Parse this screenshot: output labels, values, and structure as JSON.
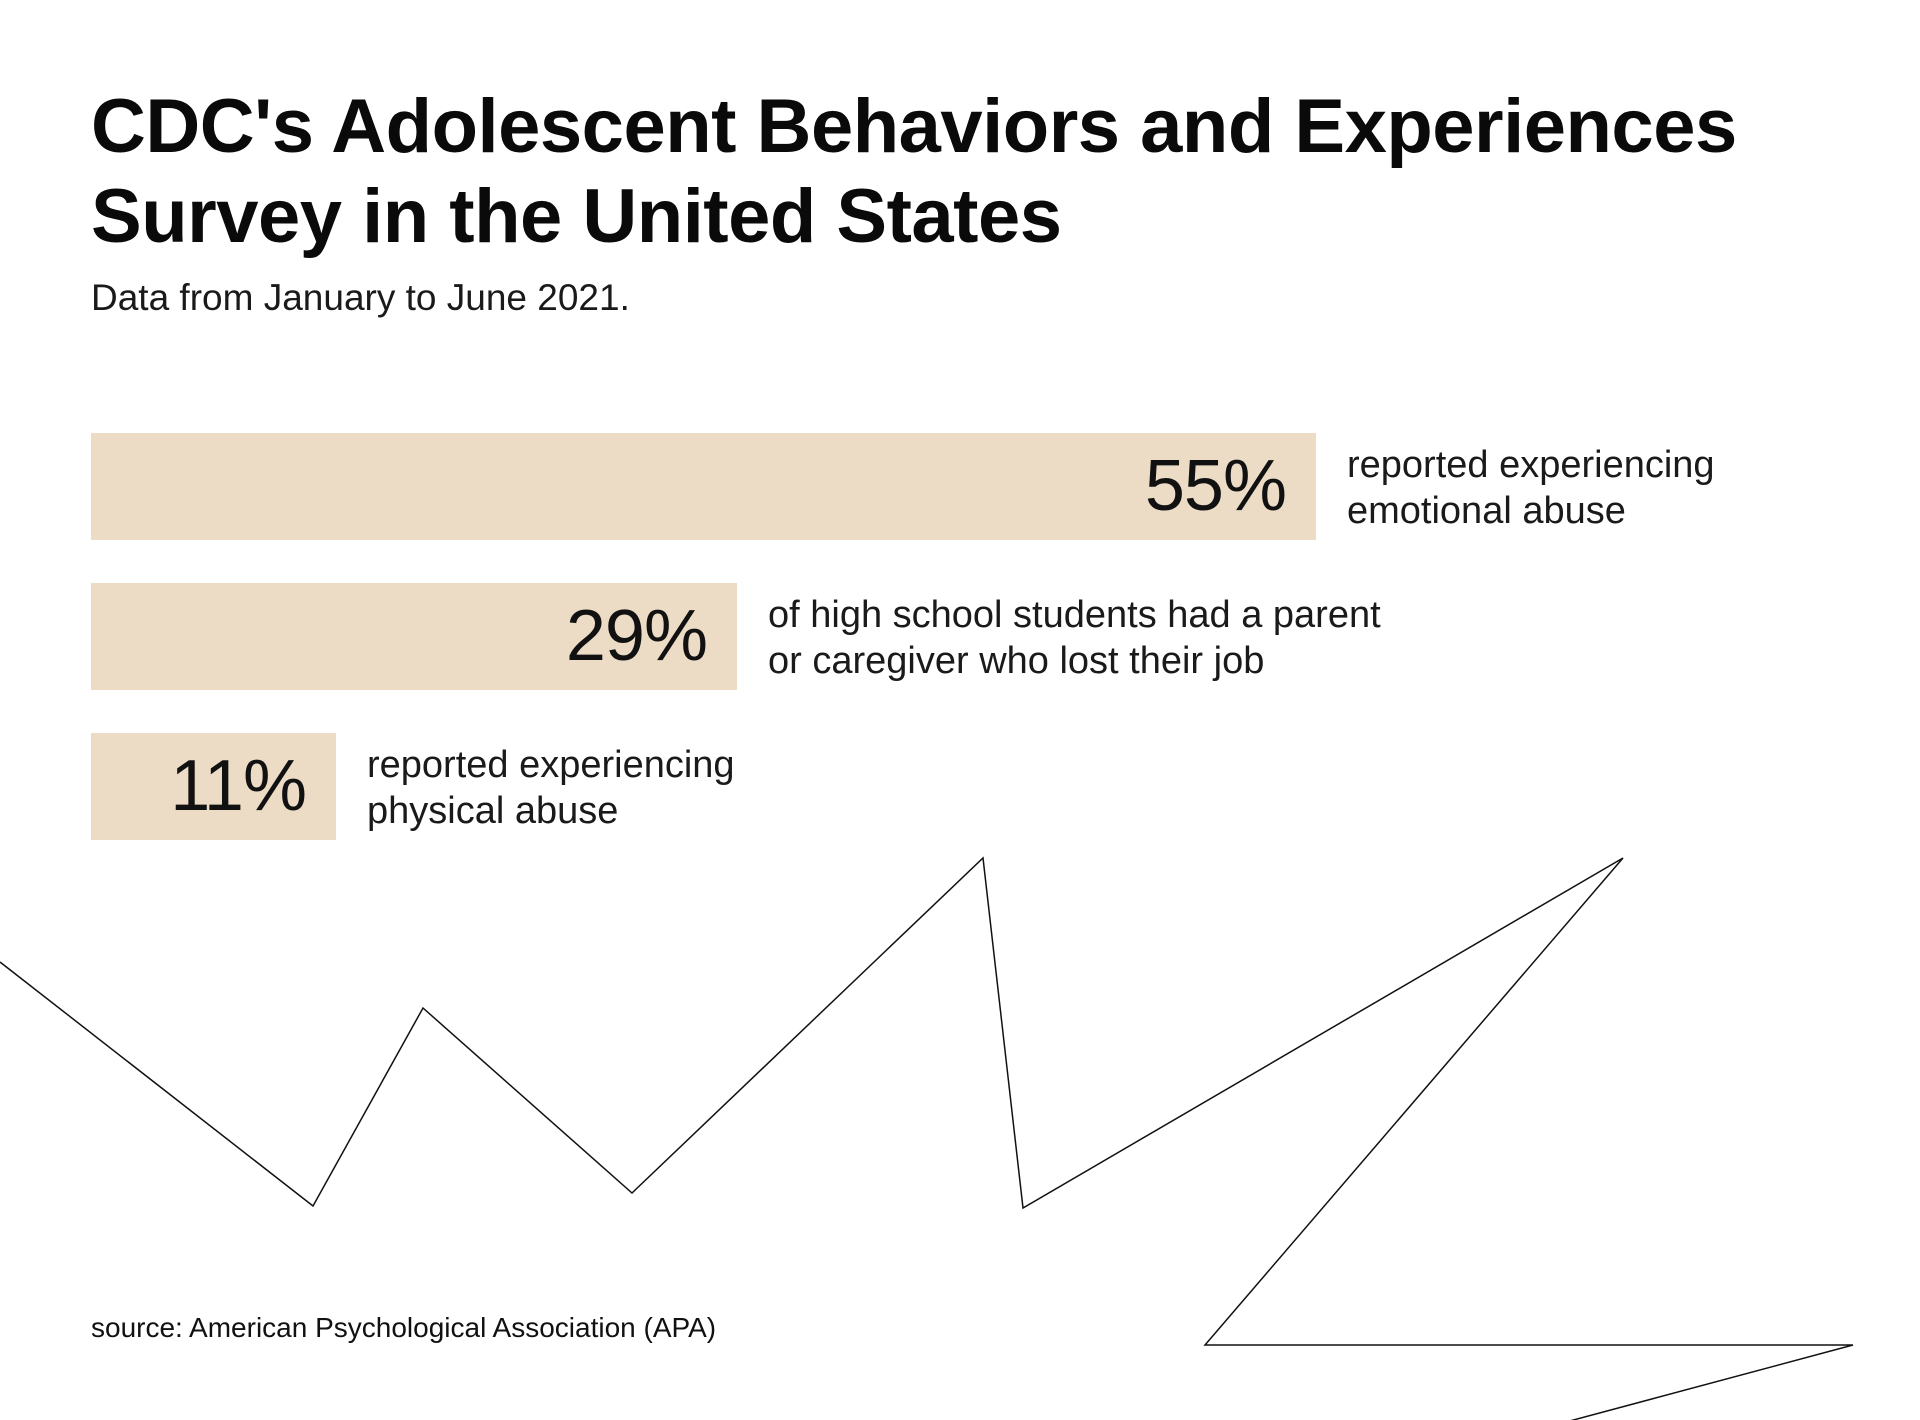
{
  "title": "CDC's Adolescent Behaviors and Experiences Survey in the United States",
  "subtitle": "Data from January to June 2021.",
  "source": "source: American Psychological Association (APA)",
  "colors": {
    "bar": "#eddcc5",
    "text": "#111111",
    "decoration_line": "#111111"
  },
  "chart_data": {
    "type": "bar",
    "orientation": "horizontal",
    "title": "CDC's Adolescent Behaviors and Experiences Survey in the United States",
    "subtitle": "Data from January to June 2021.",
    "categories": [
      "reported experiencing emotional abuse",
      "of high school students had a parent or caregiver who lost their job",
      "reported experiencing physical abuse"
    ],
    "values": [
      55,
      29,
      11
    ],
    "unit": "%",
    "bars": [
      {
        "value": 55,
        "value_label": "55%",
        "label_lines": [
          "reported experiencing",
          "emotional abuse"
        ]
      },
      {
        "value": 29,
        "value_label": "29%",
        "label_lines": [
          "of high school students had a parent",
          "or caregiver who lost their job"
        ]
      },
      {
        "value": 11,
        "value_label": "11%",
        "label_lines": [
          "reported experiencing",
          "physical abuse"
        ]
      }
    ],
    "xlabel": "",
    "ylabel": "",
    "grid": false,
    "legend": "none"
  }
}
